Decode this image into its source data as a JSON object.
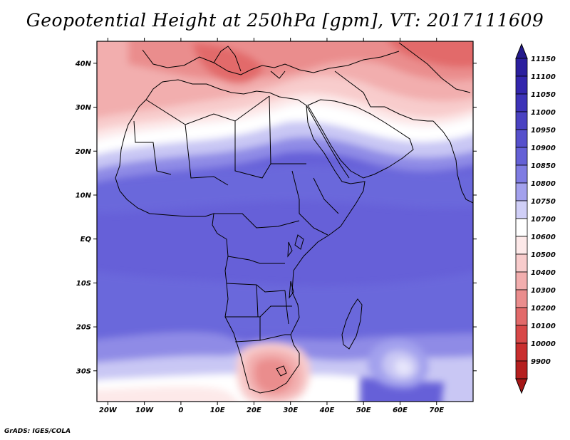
{
  "title": "Geopotential Height at 250hPa [gpm], VT: 2017111609",
  "credit": "GrADS: IGES/COLA",
  "map": {
    "lon_range": [
      -23,
      80
    ],
    "lat_range": [
      -37,
      45
    ],
    "lat_ticks": [
      {
        "value": 40,
        "label": "40N"
      },
      {
        "value": 30,
        "label": "30N"
      },
      {
        "value": 20,
        "label": "20N"
      },
      {
        "value": 10,
        "label": "10N"
      },
      {
        "value": 0,
        "label": "EQ"
      },
      {
        "value": -10,
        "label": "10S"
      },
      {
        "value": -20,
        "label": "20S"
      },
      {
        "value": -30,
        "label": "30S"
      }
    ],
    "lon_ticks": [
      {
        "value": -20,
        "label": "20W"
      },
      {
        "value": -10,
        "label": "10W"
      },
      {
        "value": 0,
        "label": "0"
      },
      {
        "value": 10,
        "label": "10E"
      },
      {
        "value": 20,
        "label": "20E"
      },
      {
        "value": 30,
        "label": "30E"
      },
      {
        "value": 40,
        "label": "40E"
      },
      {
        "value": 50,
        "label": "50E"
      },
      {
        "value": 60,
        "label": "60E"
      },
      {
        "value": 70,
        "label": "70E"
      }
    ]
  },
  "colorbar": {
    "levels": [
      {
        "label": "11150",
        "color": "#2b1f9e"
      },
      {
        "label": "11100",
        "color": "#3326ad"
      },
      {
        "label": "11050",
        "color": "#3d33b8"
      },
      {
        "label": "11000",
        "color": "#4a42c2"
      },
      {
        "label": "10950",
        "color": "#5650cc"
      },
      {
        "label": "10900",
        "color": "#6460d6"
      },
      {
        "label": "10850",
        "color": "#7f7ce2"
      },
      {
        "label": "10800",
        "color": "#a3a1ed"
      },
      {
        "label": "10750",
        "color": "#d0cff7"
      },
      {
        "label": "10700",
        "color": "#ffffff"
      },
      {
        "label": "10600",
        "color": "#fde9e9"
      },
      {
        "label": "10500",
        "color": "#f8cccc"
      },
      {
        "label": "10400",
        "color": "#f2aeae"
      },
      {
        "label": "10300",
        "color": "#ea8d8d"
      },
      {
        "label": "10200",
        "color": "#e26a6a"
      },
      {
        "label": "10100",
        "color": "#d84848"
      },
      {
        "label": "10000",
        "color": "#c92e2e"
      },
      {
        "label": "9900",
        "color": "#b51f1f"
      }
    ]
  }
}
